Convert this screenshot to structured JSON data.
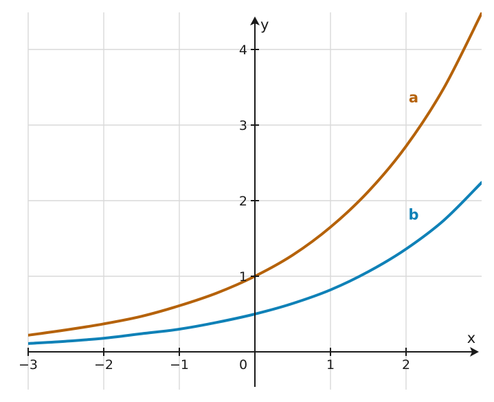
{
  "chart_data": {
    "type": "line",
    "xlabel": "x",
    "ylabel": "y",
    "xlim": [
      -3,
      3
    ],
    "ylim": [
      0,
      4.5
    ],
    "x_ticks": [
      {
        "value": -3,
        "label": "−3"
      },
      {
        "value": -2,
        "label": "−2"
      },
      {
        "value": -1,
        "label": "−1"
      },
      {
        "value": 0,
        "label": "0"
      },
      {
        "value": 1,
        "label": "1"
      },
      {
        "value": 2,
        "label": "2"
      }
    ],
    "y_ticks": [
      {
        "value": 1,
        "label": "1"
      },
      {
        "value": 2,
        "label": "2"
      },
      {
        "value": 3,
        "label": "3"
      },
      {
        "value": 4,
        "label": "4"
      }
    ],
    "grid": true,
    "series": [
      {
        "name": "a",
        "color": "#b5620a",
        "x": [
          -3,
          -2.5,
          -2,
          -1.5,
          -1,
          -0.5,
          0,
          0.5,
          1,
          1.5,
          2,
          2.5,
          3
        ],
        "y": [
          0.22,
          0.29,
          0.37,
          0.47,
          0.61,
          0.78,
          1.0,
          1.28,
          1.65,
          2.12,
          2.72,
          3.49,
          4.48
        ],
        "label_at": [
          2.1,
          3.3
        ]
      },
      {
        "name": "b",
        "color": "#0f81b7",
        "x": [
          -3,
          -2.5,
          -2,
          -1.5,
          -1,
          -0.5,
          0,
          0.5,
          1,
          1.5,
          2,
          2.5,
          3
        ],
        "y": [
          0.11,
          0.14,
          0.18,
          0.24,
          0.3,
          0.39,
          0.5,
          0.64,
          0.82,
          1.06,
          1.36,
          1.74,
          2.24
        ],
        "label_at": [
          2.1,
          1.75
        ]
      }
    ]
  }
}
